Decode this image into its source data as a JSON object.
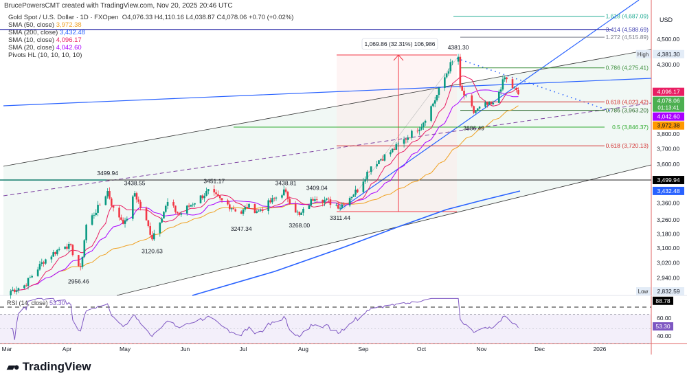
{
  "header": {
    "credit": "BrucePowersCMT created with TradingView.com, Nov 20, 2025 20:46 UTC",
    "symbol": "Gold Spot / U.S. Dollar · 1D · FXOpen",
    "ohlc": "O4,076.33  H4,110.16  L4,038.87  C4,078.06  +0.70 (+0.02%)"
  },
  "legend": [
    {
      "label": "SMA (50, close)",
      "value": "3,972.38",
      "color": "#f0a020"
    },
    {
      "label": "SMA (200, close)",
      "value": "3,432.48",
      "color": "#2962ff"
    },
    {
      "label": "SMA (10, close)",
      "value": "4,096.17",
      "color": "#e91e63"
    },
    {
      "label": "SMA (20, close)",
      "value": "4,042.60",
      "color": "#aa00ff"
    },
    {
      "label": "Pivots HL (10, 10, 10, 10)",
      "value": "",
      "color": "#333333"
    }
  ],
  "logo": "TradingView",
  "chart_data": {
    "type": "candlestick",
    "currency": "USD",
    "scale": "log",
    "price_ticks": [
      "4,500.00",
      "4,300.00",
      "3,800.00",
      "3,700.00",
      "3,600.00",
      "3,360.00",
      "3,260.00",
      "3,180.00",
      "3,100.00",
      "3,020.00",
      "2,940.00"
    ],
    "price_tick_values": [
      4500,
      4300,
      3800,
      3700,
      3600,
      3360,
      3260,
      3180,
      3100,
      3020,
      2940
    ],
    "time_ticks": [
      {
        "label": "Mar",
        "date": "2025-03-01"
      },
      {
        "label": "Apr",
        "date": "2025-04-01"
      },
      {
        "label": "May",
        "date": "2025-05-01"
      },
      {
        "label": "Jun",
        "date": "2025-06-01"
      },
      {
        "label": "Jul",
        "date": "2025-07-01"
      },
      {
        "label": "Aug",
        "date": "2025-08-01"
      },
      {
        "label": "Sep",
        "date": "2025-09-01"
      },
      {
        "label": "Oct",
        "date": "2025-10-01"
      },
      {
        "label": "Nov",
        "date": "2025-11-01"
      },
      {
        "label": "Dec",
        "date": "2025-12-01"
      },
      {
        "label": "2026",
        "date": "2026-01-01"
      }
    ],
    "close_path": [
      [
        "2025-02-28",
        2860
      ],
      [
        "2025-03-10",
        2900
      ],
      [
        "2025-03-20",
        3030
      ],
      [
        "2025-03-31",
        3120
      ],
      [
        "2025-04-03",
        3100
      ],
      [
        "2025-04-08",
        2980
      ],
      [
        "2025-04-11",
        3230
      ],
      [
        "2025-04-17",
        3330
      ],
      [
        "2025-04-22",
        3430
      ],
      [
        "2025-04-25",
        3320
      ],
      [
        "2025-05-01",
        3240
      ],
      [
        "2025-05-06",
        3420
      ],
      [
        "2025-05-15",
        3160
      ],
      [
        "2025-05-23",
        3360
      ],
      [
        "2025-05-29",
        3290
      ],
      [
        "2025-06-05",
        3360
      ],
      [
        "2025-06-13",
        3430
      ],
      [
        "2025-06-20",
        3370
      ],
      [
        "2025-06-30",
        3300
      ],
      [
        "2025-07-03",
        3340
      ],
      [
        "2025-07-09",
        3310
      ],
      [
        "2025-07-22",
        3430
      ],
      [
        "2025-07-30",
        3280
      ],
      [
        "2025-08-07",
        3400
      ],
      [
        "2025-08-20",
        3340
      ],
      [
        "2025-08-29",
        3440
      ],
      [
        "2025-09-05",
        3590
      ],
      [
        "2025-09-16",
        3690
      ],
      [
        "2025-09-23",
        3770
      ],
      [
        "2025-10-01",
        3860
      ],
      [
        "2025-10-08",
        4040
      ],
      [
        "2025-10-16",
        4300
      ],
      [
        "2025-10-20",
        4360
      ],
      [
        "2025-10-21",
        4120
      ],
      [
        "2025-10-28",
        3950
      ],
      [
        "2025-11-03",
        4000
      ],
      [
        "2025-11-07",
        4000
      ],
      [
        "2025-11-13",
        4200
      ],
      [
        "2025-11-20",
        4078
      ]
    ],
    "pivots": [
      {
        "label": "3499.94",
        "date": "2025-04-22",
        "price": 3499.94,
        "pos": "above"
      },
      {
        "label": "3438.55",
        "date": "2025-05-06",
        "price": 3438.55,
        "pos": "above"
      },
      {
        "label": "3451.17",
        "date": "2025-06-16",
        "price": 3451.17,
        "pos": "above"
      },
      {
        "label": "3438.81",
        "date": "2025-07-23",
        "price": 3438.81,
        "pos": "above"
      },
      {
        "label": "3409.04",
        "date": "2025-08-08",
        "price": 3409.04,
        "pos": "above"
      },
      {
        "label": "4381.30",
        "date": "2025-10-20",
        "price": 4381.3,
        "pos": "above"
      },
      {
        "label": "2956.46",
        "date": "2025-04-07",
        "price": 2956.46,
        "pos": "below"
      },
      {
        "label": "3120.63",
        "date": "2025-05-15",
        "price": 3120.63,
        "pos": "below"
      },
      {
        "label": "3247.34",
        "date": "2025-06-30",
        "price": 3247.34,
        "pos": "below"
      },
      {
        "label": "3268.00",
        "date": "2025-07-30",
        "price": 3268.0,
        "pos": "below"
      },
      {
        "label": "3311.44",
        "date": "2025-08-20",
        "price": 3311.44,
        "pos": "below"
      },
      {
        "label": "3886.49",
        "date": "2025-10-28",
        "price": 3886.49,
        "pos": "below"
      }
    ],
    "fib_levels": [
      {
        "label": "1.618 (4,687.09)",
        "price": 4687.09,
        "color": "#22ab94"
      },
      {
        "label": "3.414 (4,588.69)",
        "price": 4588.69,
        "color": "#3f3fb0"
      },
      {
        "label": "1.272 (4,515.89)",
        "price": 4515.89,
        "color": "#787b86"
      },
      {
        "label": "0.786 (4,275.41)",
        "price": 4275.41,
        "color": "#3d8f3d"
      },
      {
        "label": "0.618 (4,023.42)",
        "price": 4023.42,
        "color": "#d32f2f"
      },
      {
        "label": "0.786 (3,963.20)",
        "price": 3963.2,
        "color": "#2e6b2e"
      },
      {
        "label": "0.5 (3,846.37)",
        "price": 3846.37,
        "color": "#2eaa2e"
      },
      {
        "label": "0.618 (3,720.13)",
        "price": 3720.13,
        "color": "#d32f2f"
      }
    ],
    "measure_label": "1,069.86 (32.31%) 106,986",
    "price_badges": [
      {
        "text": "4,381.30",
        "price": 4381.3,
        "bg": "#e3ecf7",
        "fg": "#131722",
        "tag": "High"
      },
      {
        "text": "4,096.17",
        "price": 4096.17,
        "bg": "#e91e63",
        "fg": "#ffffff"
      },
      {
        "text": "4,078.06",
        "price": 4078.06,
        "bg": "#4caf50",
        "fg": "#ffffff",
        "sub": "01:13:41"
      },
      {
        "text": "4,042.60",
        "price": 4042.6,
        "bg": "#aa00ff",
        "fg": "#ffffff"
      },
      {
        "text": "3,972.38",
        "price": 3972.38,
        "bg": "#ff9800",
        "fg": "#131722"
      },
      {
        "text": "3,499.94",
        "price": 3499.94,
        "bg": "#000000",
        "fg": "#ffffff"
      },
      {
        "text": "3,432.48",
        "price": 3432.48,
        "bg": "#2962ff",
        "fg": "#ffffff"
      },
      {
        "text": "2,832.59",
        "price": 2832.59,
        "bg": "#e3ecf7",
        "fg": "#131722",
        "tag": "Low"
      }
    ],
    "rsi": {
      "title": "RSI (14, close)",
      "value": "53.30",
      "max_label": "88.78",
      "ticks": [
        "60.00",
        "40.00"
      ],
      "tick_values": [
        60,
        40
      ],
      "bands": [
        70,
        30
      ],
      "color": "#7e57c2"
    },
    "colors": {
      "up": "#089981",
      "down": "#f23645"
    }
  }
}
